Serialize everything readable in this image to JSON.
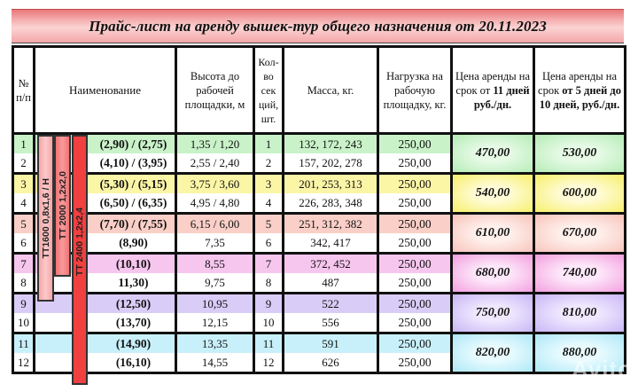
{
  "title": "Прайс-лист на аренду вышек-тур  общего назначения от 20.11.2023",
  "colors": {
    "title_band": "#f4a6a8",
    "green": "#c9f2c9",
    "yellow": "#fbf5a6",
    "salmon": "#f9cfc7",
    "pink": "#f6c6ee",
    "lavender": "#d9ccf7",
    "cyan": "#c8f0fa",
    "bar_tt1600": "#f8b3b3",
    "bar_tt2000": "#f47f80",
    "bar_tt2400": "#f14545"
  },
  "headers": {
    "num": "№ п/п",
    "name": "Наименование",
    "height": "Высота до рабочей площадки, м",
    "sections": "Кол-во сек ций, шт.",
    "mass": "Масса, кг.",
    "load": "Нагрузка на рабочую площадку, кг.",
    "price_11_plain": "Цена аренды на срок от ",
    "price_11_bold": "11 дней руб./дн.",
    "price_5_plain": "Цена аренды на срок ",
    "price_5_bold": "от 5 дней до 10 дней, руб./дн."
  },
  "models": [
    {
      "label": "ТТ1600 0,8х1,6 / Н"
    },
    {
      "label": "ТТ 2000 1,2х2,0"
    },
    {
      "label": "ТТ 2400 1,2х2,4"
    }
  ],
  "rows": [
    {
      "num": "1",
      "name": "(2,90) / (2,75)",
      "height": "1,35 / 1,20",
      "sections": "1",
      "mass": "132, 172, 243",
      "load": "250,00"
    },
    {
      "num": "2",
      "name": "(4,10) / (3,95)",
      "height": "2,55 / 2,40",
      "sections": "2",
      "mass": "157, 202, 278",
      "load": "250,00"
    },
    {
      "num": "3",
      "name": "(5,30) / (5,15)",
      "height": "3,75 / 3,60",
      "sections": "3",
      "mass": "201, 253, 313",
      "load": "250,00"
    },
    {
      "num": "4",
      "name": "(6,50) / (6,35)",
      "height": "4,95 / 4,80",
      "sections": "4",
      "mass": "226, 283, 348",
      "load": "250,00"
    },
    {
      "num": "5",
      "name": "(7,70) / (7,55)",
      "height": "6,15 / 6,00",
      "sections": "5",
      "mass": "251, 312, 382",
      "load": "250,00"
    },
    {
      "num": "6",
      "name": "(8,90)",
      "height": "7,35",
      "sections": "6",
      "mass": "342, 417",
      "load": "250,00"
    },
    {
      "num": "7",
      "name": "(10,10)",
      "height": "8,55",
      "sections": "7",
      "mass": "372, 452",
      "load": "250,00"
    },
    {
      "num": "8",
      "name": "11,30)",
      "height": "9,75",
      "sections": "8",
      "mass": "487",
      "load": "250,00"
    },
    {
      "num": "9",
      "name": "(12,50)",
      "height": "10,95",
      "sections": "9",
      "mass": "522",
      "load": "250,00"
    },
    {
      "num": "10",
      "name": "(13,70)",
      "height": "12,15",
      "sections": "10",
      "mass": "556",
      "load": "250,00"
    },
    {
      "num": "11",
      "name": "(14,90)",
      "height": "13,35",
      "sections": "11",
      "mass": "591",
      "load": "250,00"
    },
    {
      "num": "12",
      "name": "(16,10)",
      "height": "14,55",
      "sections": "12",
      "mass": "626",
      "load": "250,00"
    }
  ],
  "prices": [
    {
      "p11": "470,00",
      "p5": "530,00"
    },
    {
      "p11": "540,00",
      "p5": "600,00"
    },
    {
      "p11": "610,00",
      "p5": "670,00"
    },
    {
      "p11": "680,00",
      "p5": "740,00"
    },
    {
      "p11": "750,00",
      "p5": "810,00"
    },
    {
      "p11": "820,00",
      "p5": "880,00"
    }
  ],
  "watermark": "Avito"
}
